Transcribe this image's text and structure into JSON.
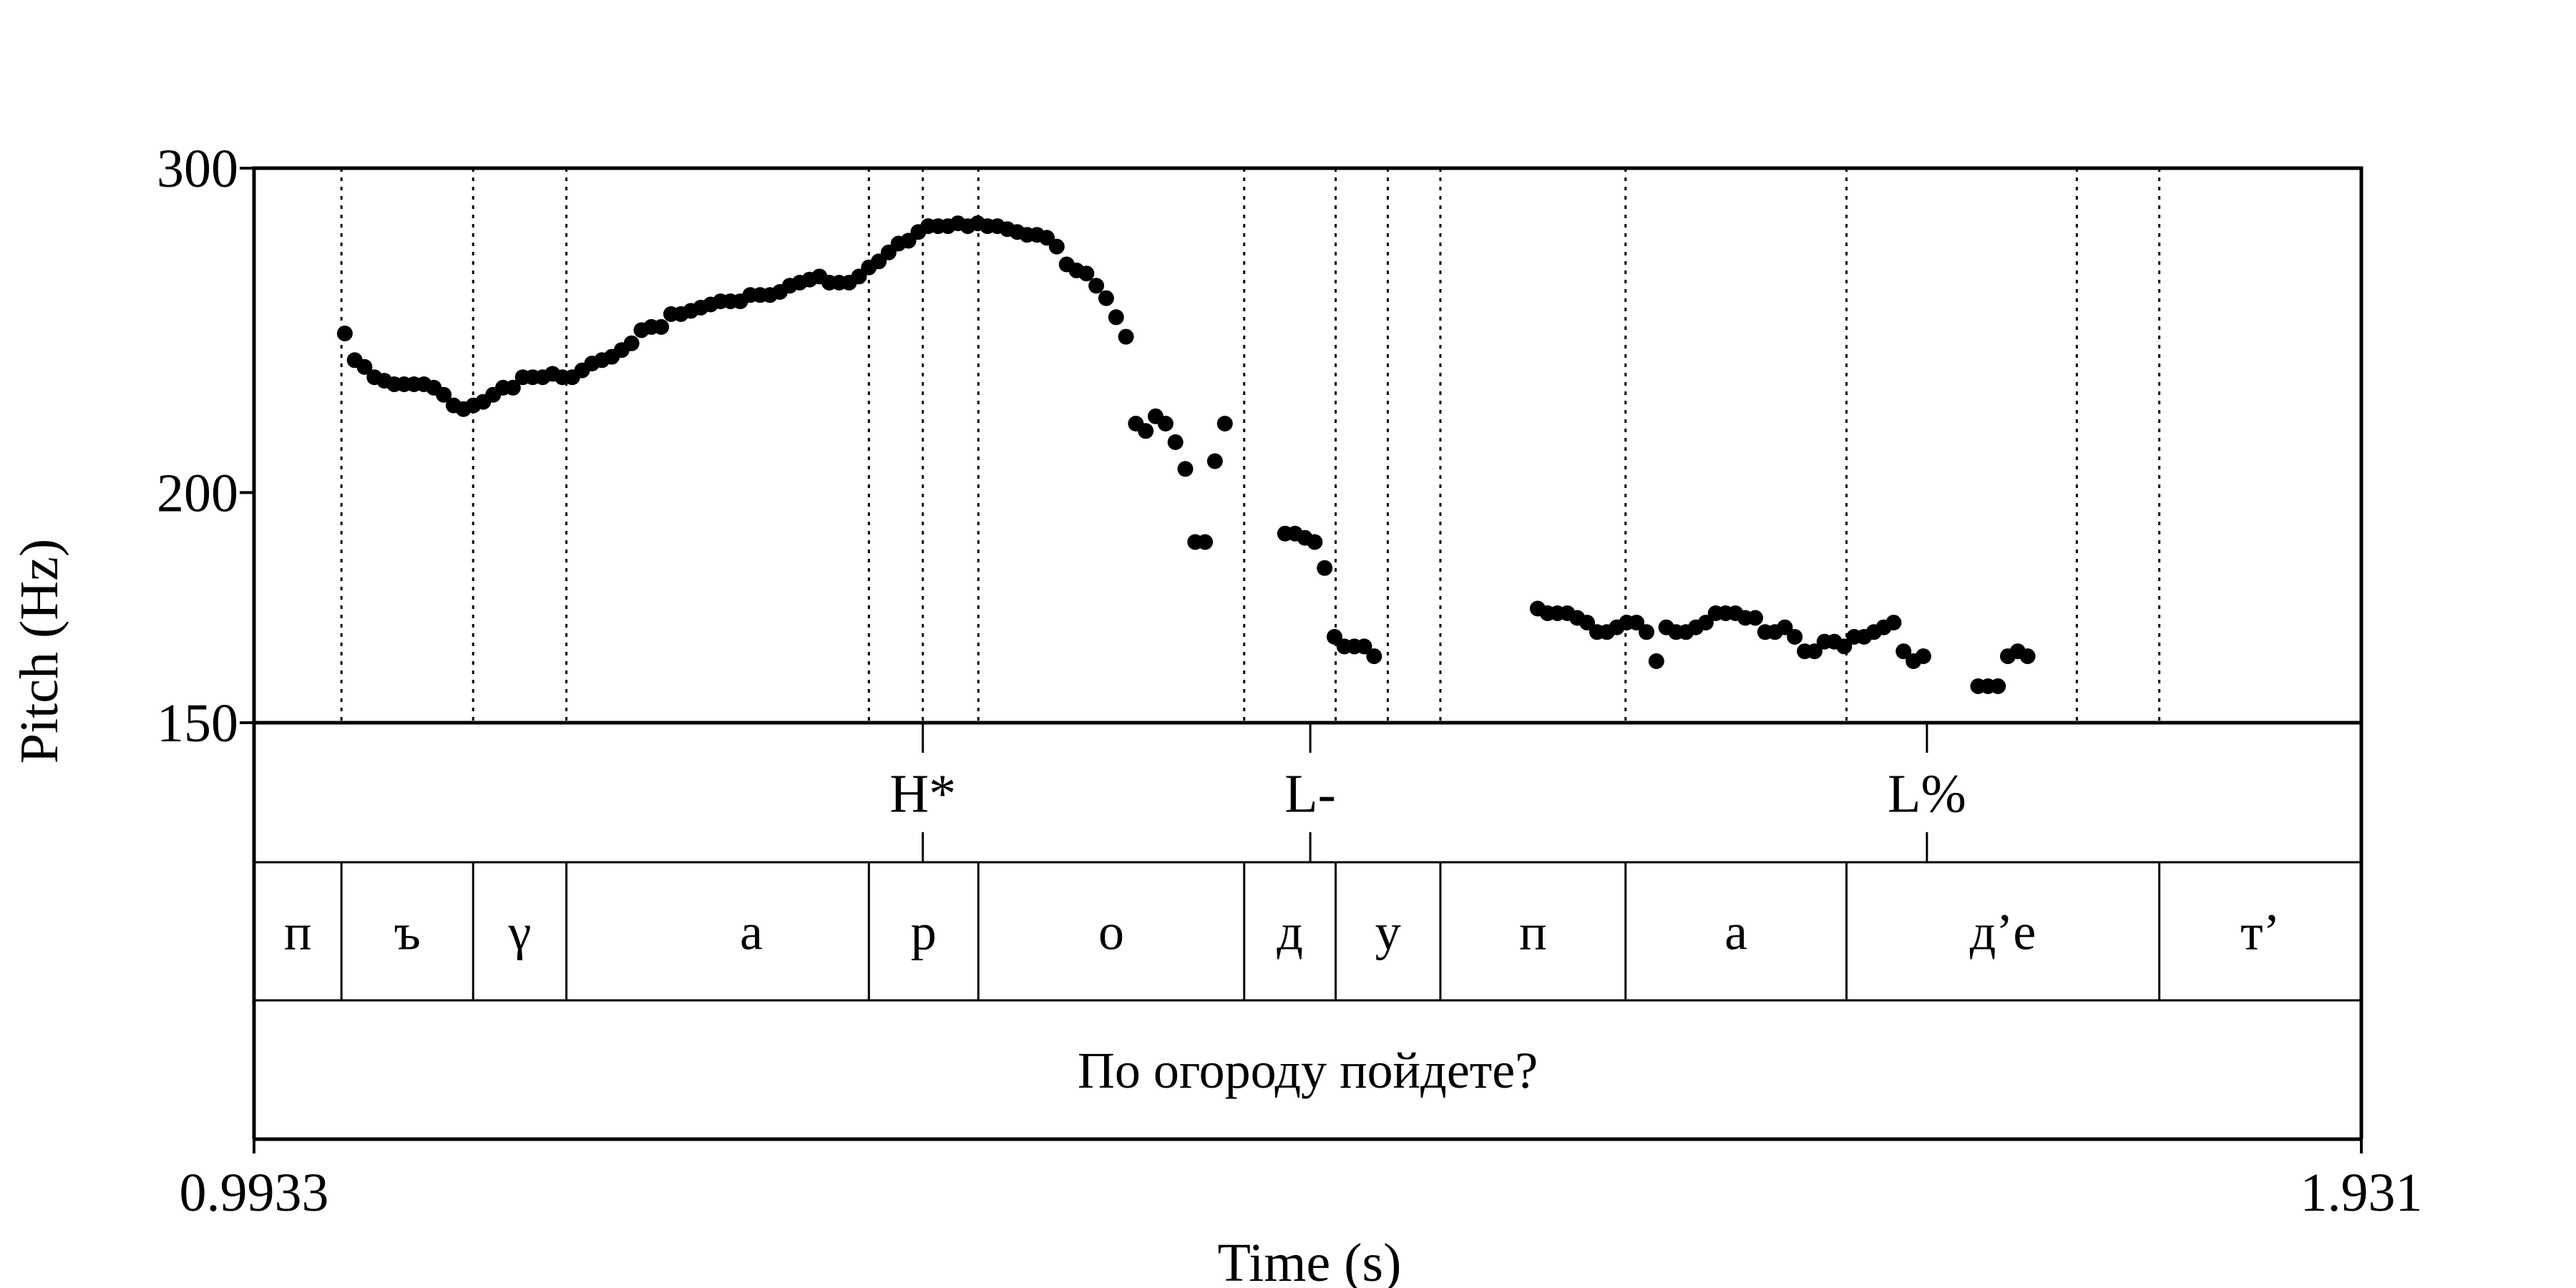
{
  "chart_data": {
    "type": "scatter",
    "xlabel": "Time (s)",
    "ylabel": "Pitch (Hz)",
    "xlim": [
      0.9933,
      1.931
    ],
    "ylim": [
      150,
      300
    ],
    "y_scale": "log",
    "x_ticks": [
      "0.9933",
      "1.931"
    ],
    "y_ticks": [
      300,
      200,
      150
    ],
    "grid": false,
    "series": [
      {
        "points": [
          [
            1.0337,
            244
          ],
          [
            1.0381,
            236
          ],
          [
            1.0425,
            234
          ],
          [
            1.0469,
            231
          ],
          [
            1.0513,
            230
          ],
          [
            1.0557,
            229
          ],
          [
            1.0601,
            229
          ],
          [
            1.0645,
            229
          ],
          [
            1.0689,
            229
          ],
          [
            1.0733,
            228
          ],
          [
            1.0777,
            226
          ],
          [
            1.0821,
            223
          ],
          [
            1.0865,
            222
          ],
          [
            1.0909,
            223
          ],
          [
            1.0953,
            224
          ],
          [
            1.0997,
            226
          ],
          [
            1.1041,
            228
          ],
          [
            1.1085,
            228
          ],
          [
            1.1129,
            231
          ],
          [
            1.1173,
            231
          ],
          [
            1.1217,
            231
          ],
          [
            1.1261,
            232
          ],
          [
            1.1305,
            231
          ],
          [
            1.1349,
            231
          ],
          [
            1.1393,
            233
          ],
          [
            1.1437,
            235
          ],
          [
            1.1481,
            236
          ],
          [
            1.1525,
            237
          ],
          [
            1.1569,
            239
          ],
          [
            1.1613,
            241
          ],
          [
            1.1657,
            245
          ],
          [
            1.1701,
            246
          ],
          [
            1.1745,
            246
          ],
          [
            1.1789,
            250
          ],
          [
            1.1833,
            250
          ],
          [
            1.1877,
            251
          ],
          [
            1.1921,
            252
          ],
          [
            1.1965,
            253
          ],
          [
            1.2009,
            254
          ],
          [
            1.2053,
            254
          ],
          [
            1.2097,
            254
          ],
          [
            1.2141,
            256
          ],
          [
            1.2185,
            256
          ],
          [
            1.2229,
            256
          ],
          [
            1.2273,
            257
          ],
          [
            1.2317,
            259
          ],
          [
            1.2361,
            260
          ],
          [
            1.2405,
            261
          ],
          [
            1.2449,
            262
          ],
          [
            1.2493,
            260
          ],
          [
            1.2537,
            260
          ],
          [
            1.2581,
            260
          ],
          [
            1.2625,
            262
          ],
          [
            1.2669,
            265
          ],
          [
            1.2713,
            267
          ],
          [
            1.2757,
            270
          ],
          [
            1.2801,
            273
          ],
          [
            1.2845,
            274
          ],
          [
            1.2889,
            277
          ],
          [
            1.2933,
            279
          ],
          [
            1.2977,
            279
          ],
          [
            1.3021,
            279
          ],
          [
            1.3065,
            280
          ],
          [
            1.3109,
            279
          ],
          [
            1.3153,
            280
          ],
          [
            1.3197,
            279
          ],
          [
            1.3241,
            279
          ],
          [
            1.3285,
            278
          ],
          [
            1.3329,
            277
          ],
          [
            1.3373,
            276
          ],
          [
            1.3417,
            276
          ],
          [
            1.3461,
            275
          ],
          [
            1.3505,
            272
          ],
          [
            1.3549,
            266
          ],
          [
            1.3593,
            264
          ],
          [
            1.3637,
            263
          ],
          [
            1.3681,
            259
          ],
          [
            1.3725,
            255
          ],
          [
            1.3769,
            249
          ],
          [
            1.3813,
            243
          ],
          [
            1.3857,
            218
          ],
          [
            1.3901,
            216
          ],
          [
            1.3945,
            220
          ],
          [
            1.3989,
            218
          ],
          [
            1.4033,
            213
          ],
          [
            1.4077,
            206
          ],
          [
            1.4121,
            188
          ],
          [
            1.4165,
            188
          ],
          [
            1.4209,
            208
          ],
          [
            1.4253,
            218
          ],
          [
            1.4521,
            190
          ],
          [
            1.4565,
            190
          ],
          [
            1.4609,
            189
          ],
          [
            1.4653,
            188
          ],
          [
            1.4697,
            182
          ],
          [
            1.4741,
            167
          ],
          [
            1.4785,
            165
          ],
          [
            1.4829,
            165
          ],
          [
            1.4873,
            165
          ],
          [
            1.4917,
            163
          ],
          [
            1.5645,
            173
          ],
          [
            1.5689,
            172
          ],
          [
            1.5733,
            172
          ],
          [
            1.5777,
            172
          ],
          [
            1.5821,
            171
          ],
          [
            1.5865,
            170
          ],
          [
            1.5909,
            168
          ],
          [
            1.5953,
            168
          ],
          [
            1.5997,
            169
          ],
          [
            1.6041,
            170
          ],
          [
            1.6085,
            170
          ],
          [
            1.6129,
            168
          ],
          [
            1.6173,
            162
          ],
          [
            1.6217,
            169
          ],
          [
            1.6261,
            168
          ],
          [
            1.6305,
            168
          ],
          [
            1.6349,
            169
          ],
          [
            1.6393,
            170
          ],
          [
            1.6437,
            172
          ],
          [
            1.6481,
            172
          ],
          [
            1.6525,
            172
          ],
          [
            1.6569,
            171
          ],
          [
            1.6613,
            171
          ],
          [
            1.6657,
            168
          ],
          [
            1.6701,
            168
          ],
          [
            1.6745,
            169
          ],
          [
            1.6789,
            167
          ],
          [
            1.6833,
            164
          ],
          [
            1.6877,
            164
          ],
          [
            1.6921,
            166
          ],
          [
            1.6965,
            166
          ],
          [
            1.7009,
            165
          ],
          [
            1.7053,
            167
          ],
          [
            1.7097,
            167
          ],
          [
            1.7141,
            168
          ],
          [
            1.7185,
            169
          ],
          [
            1.7229,
            170
          ],
          [
            1.7273,
            164
          ],
          [
            1.7317,
            162
          ],
          [
            1.7361,
            163
          ],
          [
            1.7605,
            157
          ],
          [
            1.7649,
            157
          ],
          [
            1.7693,
            157
          ],
          [
            1.7737,
            163
          ],
          [
            1.7781,
            164
          ],
          [
            1.7825,
            163
          ]
        ]
      }
    ],
    "tone_tier": [
      {
        "time": 1.2909,
        "label": "H*"
      },
      {
        "time": 1.4633,
        "label": "L-"
      },
      {
        "time": 1.7377,
        "label": "L%"
      }
    ],
    "segment_tier": [
      {
        "start": 0.9933,
        "end": 1.0322,
        "label": "п"
      },
      {
        "start": 1.0322,
        "end": 1.0908,
        "label": "ъ"
      },
      {
        "start": 1.0908,
        "end": 1.1323,
        "label": "γ"
      },
      {
        "start": 1.1323,
        "end": 1.2969,
        "label": "а",
        "split": 1.2967
      },
      {
        "start": 1.2669,
        "end": 1.3156,
        "label": "р"
      },
      {
        "start": 1.3156,
        "end": 1.4339,
        "label": "о"
      },
      {
        "start": 1.4339,
        "end": 1.4746,
        "label": "д"
      },
      {
        "start": 1.4746,
        "end": 1.5212,
        "label": "у"
      },
      {
        "start": 1.5212,
        "end": 1.6036,
        "label": "п"
      },
      {
        "start": 1.6036,
        "end": 1.7019,
        "label": "а"
      },
      {
        "start": 1.7019,
        "end": 1.8411,
        "label": "д’е"
      },
      {
        "start": 1.8411,
        "end": 1.931,
        "label": "т’"
      }
    ],
    "sentence_tier": {
      "start": 0.9933,
      "end": 1.931,
      "label": "По огороду пойдете?"
    },
    "boundary_lines": [
      1.0322,
      1.0908,
      1.1323,
      1.2669,
      1.2909,
      1.3156,
      1.4339,
      1.4746,
      1.4978,
      1.5212,
      1.6036,
      1.7019,
      1.8044,
      1.8411
    ]
  }
}
